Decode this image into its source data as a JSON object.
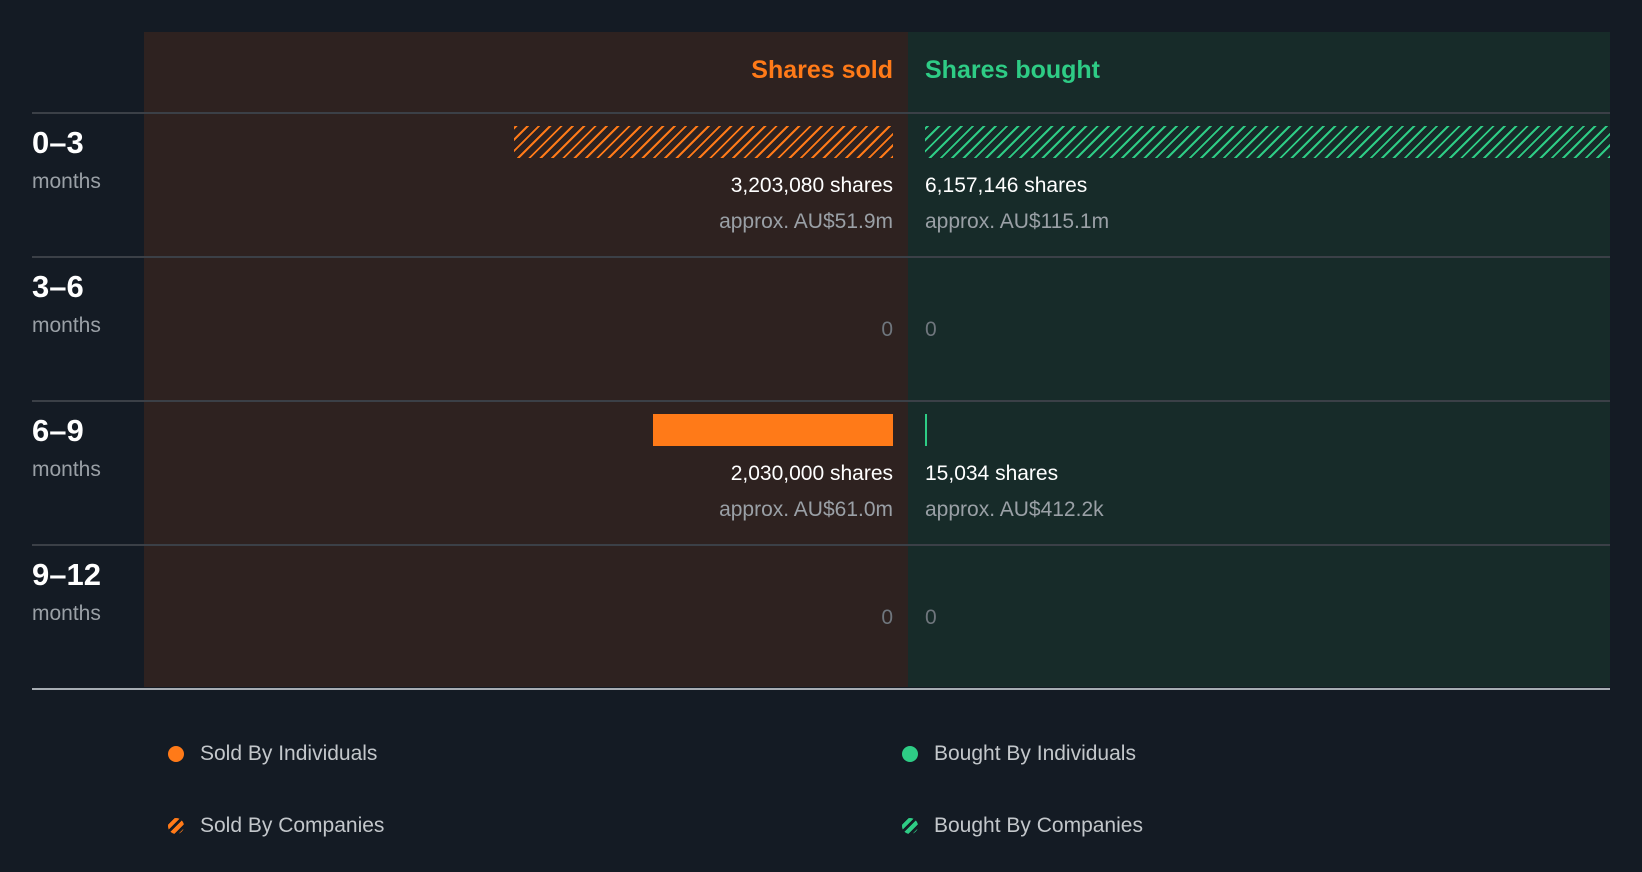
{
  "chart_data": {
    "type": "bar",
    "orientation": "horizontal-diverging",
    "headers": {
      "sold": "Shares sold",
      "bought": "Shares bought"
    },
    "periods": [
      {
        "range": "0–3",
        "unit": "months",
        "sold": {
          "individuals": 0,
          "companies": 3203080,
          "shares_text": "3,203,080 shares",
          "approx_text": "approx. AU$51.9m"
        },
        "bought": {
          "individuals": 0,
          "companies": 6157146,
          "shares_text": "6,157,146 shares",
          "approx_text": "approx. AU$115.1m"
        }
      },
      {
        "range": "3–6",
        "unit": "months",
        "sold": {
          "individuals": 0,
          "companies": 0,
          "shares_text": "",
          "approx_text": "",
          "zero_text": "0"
        },
        "bought": {
          "individuals": 0,
          "companies": 0,
          "shares_text": "",
          "approx_text": "",
          "zero_text": "0"
        }
      },
      {
        "range": "6–9",
        "unit": "months",
        "sold": {
          "individuals": 2030000,
          "companies": 0,
          "shares_text": "2,030,000 shares",
          "approx_text": "approx. AU$61.0m"
        },
        "bought": {
          "individuals": 15034,
          "companies": 0,
          "shares_text": "15,034 shares",
          "approx_text": "approx. AU$412.2k"
        }
      },
      {
        "range": "9–12",
        "unit": "months",
        "sold": {
          "individuals": 0,
          "companies": 0,
          "shares_text": "",
          "approx_text": "",
          "zero_text": "0"
        },
        "bought": {
          "individuals": 0,
          "companies": 0,
          "shares_text": "",
          "approx_text": "",
          "zero_text": "0"
        }
      }
    ],
    "legend": [
      {
        "label": "Sold By Individuals",
        "side": "sold",
        "pattern": "solid"
      },
      {
        "label": "Bought By Individuals",
        "side": "bought",
        "pattern": "solid"
      },
      {
        "label": "Sold By Companies",
        "side": "sold",
        "pattern": "hatched"
      },
      {
        "label": "Bought By Companies",
        "side": "bought",
        "pattern": "hatched"
      }
    ],
    "colors": {
      "sold": "#ff7a18",
      "bought": "#2ecc85",
      "background": "#141b24",
      "sold_panel": "#2e2220",
      "bought_panel": "#172b29"
    }
  }
}
